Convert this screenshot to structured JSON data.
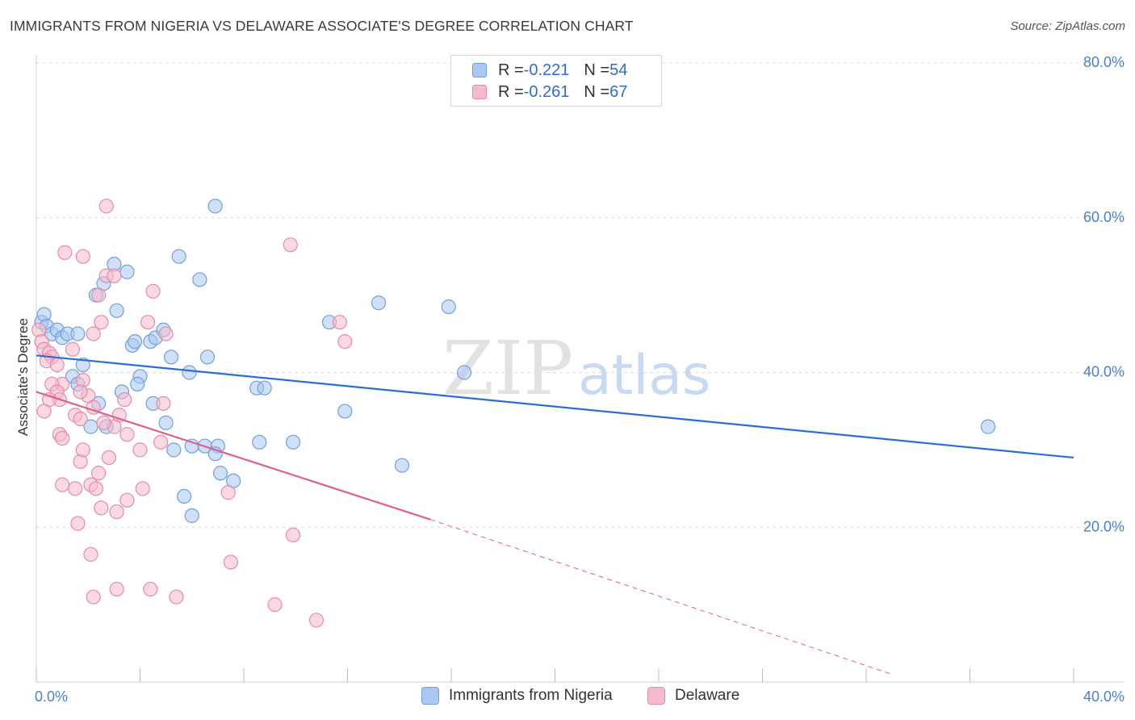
{
  "title": "IMMIGRANTS FROM NIGERIA VS DELAWARE ASSOCIATE'S DEGREE CORRELATION CHART",
  "source": "Source: ZipAtlas.com",
  "legend": {
    "series1": {
      "r_label": "R = ",
      "r_value": "-0.221",
      "n_label": "N = ",
      "n_value": "54"
    },
    "series2": {
      "r_label": "R = ",
      "r_value": "-0.261",
      "n_label": "N = ",
      "n_value": "67"
    }
  },
  "colors": {
    "blue_fill": "#aac8f0",
    "blue_stroke": "#6f9fe0",
    "blue_line": "#2a6fd0",
    "pink_fill": "#f7b9cc",
    "pink_stroke": "#e88aa8",
    "pink_line": "#e0608a",
    "grid": "#dddddd",
    "tick_text": "#4a7fd0"
  },
  "watermark": {
    "zip": "ZIP",
    "atlas": "atlas"
  },
  "chart_data": {
    "type": "scatter",
    "title": "IMMIGRANTS FROM NIGERIA VS DELAWARE ASSOCIATE'S DEGREE CORRELATION CHART",
    "xlabel": "",
    "ylabel": "Associate's Degree",
    "xlim": [
      0,
      40
    ],
    "ylim": [
      0,
      80
    ],
    "x_tick_labels": [
      "0.0%",
      "40.0%"
    ],
    "y_ticks": [
      20,
      40,
      60,
      80
    ],
    "y_tick_labels": [
      "20.0%",
      "40.0%",
      "60.0%",
      "80.0%"
    ],
    "grid": true,
    "series": [
      {
        "name": "Immigrants from Nigeria",
        "color": "blue",
        "trend": {
          "x0": 0,
          "y0": 42.2,
          "x1": 40,
          "y1": 29.0,
          "dashed_to": null
        },
        "points": [
          [
            0.2,
            46.5
          ],
          [
            0.3,
            47.5
          ],
          [
            0.4,
            46.0
          ],
          [
            0.6,
            45.0
          ],
          [
            0.8,
            45.5
          ],
          [
            1.0,
            44.5
          ],
          [
            1.2,
            45.0
          ],
          [
            1.6,
            45.0
          ],
          [
            1.8,
            41.0
          ],
          [
            1.4,
            39.5
          ],
          [
            1.6,
            38.5
          ],
          [
            2.3,
            50.0
          ],
          [
            2.6,
            51.5
          ],
          [
            3.0,
            54.0
          ],
          [
            3.1,
            48.0
          ],
          [
            3.5,
            53.0
          ],
          [
            3.7,
            43.5
          ],
          [
            3.8,
            44.0
          ],
          [
            4.0,
            39.5
          ],
          [
            4.4,
            44.0
          ],
          [
            4.6,
            44.5
          ],
          [
            4.9,
            45.5
          ],
          [
            5.2,
            42.0
          ],
          [
            5.5,
            55.0
          ],
          [
            5.9,
            40.0
          ],
          [
            6.3,
            52.0
          ],
          [
            6.6,
            42.0
          ],
          [
            6.9,
            61.5
          ],
          [
            2.4,
            36.0
          ],
          [
            3.3,
            37.5
          ],
          [
            2.7,
            33.0
          ],
          [
            2.1,
            33.0
          ],
          [
            3.9,
            38.5
          ],
          [
            4.5,
            36.0
          ],
          [
            5.0,
            33.5
          ],
          [
            5.3,
            30.0
          ],
          [
            6.0,
            30.5
          ],
          [
            6.5,
            30.5
          ],
          [
            7.0,
            30.5
          ],
          [
            6.9,
            29.5
          ],
          [
            7.1,
            27.0
          ],
          [
            7.6,
            26.0
          ],
          [
            5.7,
            24.0
          ],
          [
            6.0,
            21.5
          ],
          [
            8.5,
            38.0
          ],
          [
            8.8,
            38.0
          ],
          [
            8.6,
            31.0
          ],
          [
            9.9,
            31.0
          ],
          [
            11.3,
            46.5
          ],
          [
            11.9,
            35.0
          ],
          [
            13.2,
            49.0
          ],
          [
            14.1,
            28.0
          ],
          [
            15.9,
            48.5
          ],
          [
            16.5,
            40.0
          ],
          [
            36.7,
            33.0
          ]
        ]
      },
      {
        "name": "Delaware",
        "color": "pink",
        "trend": {
          "x0": 0,
          "y0": 37.5,
          "x1": 15.2,
          "y1": 21.0,
          "dashed_to": {
            "x": 33.0,
            "y": 1.0
          }
        },
        "points": [
          [
            0.1,
            45.5
          ],
          [
            0.2,
            44.0
          ],
          [
            0.3,
            43.0
          ],
          [
            0.5,
            42.5
          ],
          [
            0.6,
            42.0
          ],
          [
            0.4,
            41.5
          ],
          [
            0.8,
            41.0
          ],
          [
            1.0,
            38.5
          ],
          [
            0.6,
            38.5
          ],
          [
            0.8,
            37.5
          ],
          [
            0.9,
            36.5
          ],
          [
            0.5,
            36.5
          ],
          [
            0.3,
            35.0
          ],
          [
            1.4,
            43.0
          ],
          [
            1.8,
            39.0
          ],
          [
            2.2,
            45.0
          ],
          [
            2.5,
            46.5
          ],
          [
            2.7,
            52.5
          ],
          [
            2.4,
            50.0
          ],
          [
            3.0,
            52.5
          ],
          [
            1.1,
            55.5
          ],
          [
            1.8,
            55.0
          ],
          [
            2.7,
            61.5
          ],
          [
            4.3,
            46.5
          ],
          [
            4.5,
            50.5
          ],
          [
            5.0,
            45.0
          ],
          [
            2.0,
            37.0
          ],
          [
            2.2,
            35.5
          ],
          [
            1.5,
            34.5
          ],
          [
            1.7,
            34.0
          ],
          [
            3.2,
            34.5
          ],
          [
            3.4,
            36.5
          ],
          [
            3.0,
            33.0
          ],
          [
            3.5,
            32.0
          ],
          [
            4.0,
            30.0
          ],
          [
            2.6,
            33.5
          ],
          [
            0.9,
            32.0
          ],
          [
            1.0,
            31.5
          ],
          [
            1.7,
            28.5
          ],
          [
            1.8,
            30.0
          ],
          [
            2.8,
            29.0
          ],
          [
            4.8,
            31.0
          ],
          [
            4.9,
            36.0
          ],
          [
            1.0,
            25.5
          ],
          [
            1.5,
            25.0
          ],
          [
            2.1,
            25.5
          ],
          [
            2.3,
            25.0
          ],
          [
            3.5,
            23.5
          ],
          [
            2.5,
            22.5
          ],
          [
            3.1,
            22.0
          ],
          [
            1.6,
            20.5
          ],
          [
            4.1,
            25.0
          ],
          [
            7.4,
            24.5
          ],
          [
            2.1,
            16.5
          ],
          [
            2.2,
            11.0
          ],
          [
            3.1,
            12.0
          ],
          [
            4.4,
            12.0
          ],
          [
            5.4,
            11.0
          ],
          [
            7.5,
            15.5
          ],
          [
            9.2,
            10.0
          ],
          [
            9.9,
            19.0
          ],
          [
            10.8,
            8.0
          ],
          [
            9.8,
            56.5
          ],
          [
            11.7,
            46.5
          ],
          [
            11.9,
            44.0
          ],
          [
            2.4,
            27.0
          ],
          [
            1.7,
            37.5
          ]
        ]
      }
    ]
  },
  "bottom_legend": {
    "series1_label": "Immigrants from Nigeria",
    "series2_label": "Delaware"
  }
}
